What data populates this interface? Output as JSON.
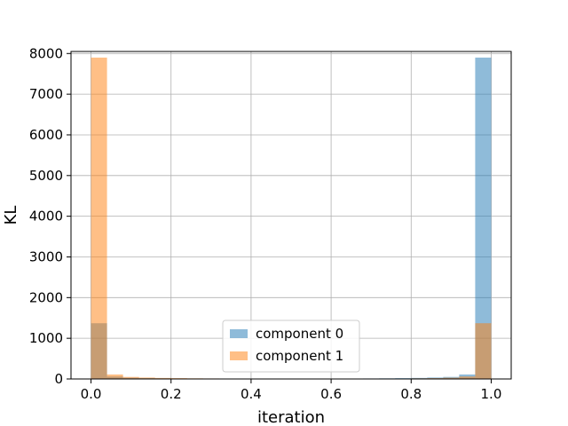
{
  "chart_data": {
    "type": "bar",
    "xlabel": "iteration",
    "ylabel": "KL",
    "xlim": [
      -0.05,
      1.05
    ],
    "ylim": [
      0,
      8050
    ],
    "xticks": [
      0.0,
      0.2,
      0.4,
      0.6,
      0.8,
      1.0
    ],
    "xtick_labels": [
      "0.0",
      "0.2",
      "0.4",
      "0.6",
      "0.8",
      "1.0"
    ],
    "yticks": [
      0,
      1000,
      2000,
      3000,
      4000,
      5000,
      6000,
      7000,
      8000
    ],
    "ytick_labels": [
      "0",
      "1000",
      "2000",
      "3000",
      "4000",
      "5000",
      "6000",
      "7000",
      "8000"
    ],
    "grid": true,
    "legend_position": "lower center",
    "bin_edges": [
      0.0,
      0.04,
      0.08,
      0.12,
      0.16,
      0.2,
      0.24,
      0.28,
      0.32,
      0.36,
      0.4,
      0.44,
      0.48,
      0.52,
      0.56,
      0.6,
      0.64,
      0.68,
      0.72,
      0.76,
      0.8,
      0.84,
      0.88,
      0.92,
      0.96,
      1.0
    ],
    "series": [
      {
        "name": "component 0",
        "color": "#1f77b4",
        "opacity": 0.5,
        "values": [
          1370,
          60,
          30,
          20,
          15,
          10,
          10,
          8,
          8,
          6,
          6,
          6,
          6,
          8,
          8,
          10,
          10,
          12,
          15,
          20,
          25,
          35,
          50,
          110,
          7900
        ]
      },
      {
        "name": "component 1",
        "color": "#ff7f0e",
        "opacity": 0.5,
        "values": [
          7900,
          110,
          50,
          35,
          25,
          20,
          15,
          12,
          10,
          10,
          8,
          8,
          6,
          6,
          6,
          6,
          8,
          8,
          10,
          10,
          15,
          20,
          30,
          60,
          1370
        ]
      }
    ]
  }
}
